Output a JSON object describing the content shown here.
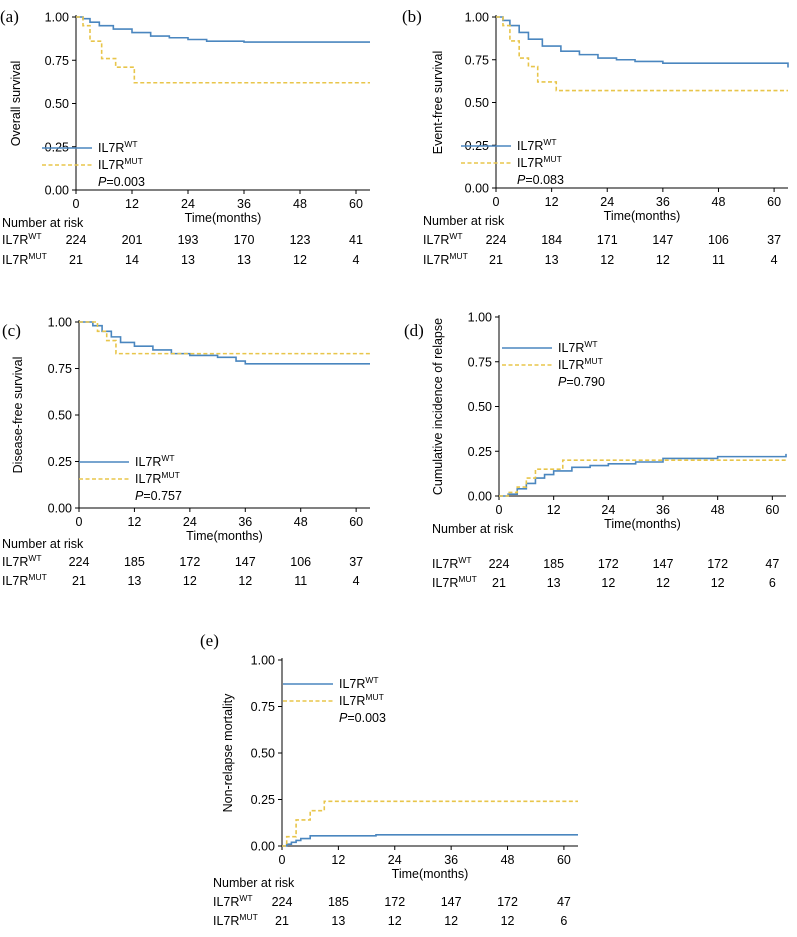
{
  "colors": {
    "wt": "#4a86bf",
    "mut": "#e8c54a",
    "axis": "#000000"
  },
  "chart_data": [
    {
      "type": "line",
      "panel": "(a)",
      "ylabel": "Overall survival",
      "xlabel": "Time(months)",
      "xticks": [
        0,
        12,
        24,
        36,
        48,
        60
      ],
      "yticks": [
        "0.00",
        "0.25",
        "0.50",
        "0.75",
        "1.00"
      ],
      "xlim": [
        0,
        63
      ],
      "ylim": [
        0,
        1
      ],
      "legend": {
        "wt_base": "IL7R",
        "wt_sup": "WT",
        "mut_base": "IL7R",
        "mut_sup": "MUT",
        "p_label": "P",
        "p_value": "=0.003"
      },
      "series": [
        {
          "name": "IL7R WT",
          "style": "solid",
          "x": [
            0,
            1.5,
            3,
            5,
            8,
            12,
            16,
            20,
            24,
            28,
            36,
            48,
            63
          ],
          "y": [
            1,
            0.99,
            0.97,
            0.95,
            0.93,
            0.91,
            0.89,
            0.88,
            0.87,
            0.86,
            0.855,
            0.855,
            0.855
          ]
        },
        {
          "name": "IL7R MUT",
          "style": "dashed",
          "x": [
            0,
            1.5,
            3,
            5.5,
            8.5,
            12.5,
            63
          ],
          "y": [
            1,
            0.95,
            0.86,
            0.76,
            0.71,
            0.62,
            0.62
          ]
        }
      ],
      "risk_table": {
        "title": "Number at risk",
        "wt_label": "IL7R",
        "wt_sup": "WT",
        "mut_label": "IL7R",
        "mut_sup": "MUT",
        "wt": [
          "224",
          "201",
          "193",
          "170",
          "123",
          "41"
        ],
        "mut": [
          "21",
          "14",
          "13",
          "13",
          "12",
          "4"
        ]
      }
    },
    {
      "type": "line",
      "panel": "(b)",
      "ylabel": "Event-free survival",
      "xlabel": "Time(months)",
      "xticks": [
        0,
        12,
        24,
        36,
        48,
        60
      ],
      "yticks": [
        "0.00",
        "0.25",
        "0.50",
        "0.75",
        "1.00"
      ],
      "xlim": [
        0,
        63
      ],
      "ylim": [
        0,
        1
      ],
      "legend": {
        "wt_base": "IL7R",
        "wt_sup": "WT",
        "mut_base": "IL7R",
        "mut_sup": "MUT",
        "p_label": "P",
        "p_value": "=0.083"
      },
      "series": [
        {
          "name": "IL7R WT",
          "style": "solid",
          "x": [
            0,
            1.5,
            3,
            5,
            7,
            10,
            14,
            18,
            22,
            26,
            30,
            36,
            48,
            62,
            63
          ],
          "y": [
            1,
            0.98,
            0.95,
            0.91,
            0.87,
            0.83,
            0.8,
            0.78,
            0.76,
            0.75,
            0.74,
            0.73,
            0.73,
            0.73,
            0.705
          ]
        },
        {
          "name": "IL7R MUT",
          "style": "dashed",
          "x": [
            0,
            1.5,
            3,
            5,
            7,
            9,
            13,
            63
          ],
          "y": [
            1,
            0.95,
            0.86,
            0.76,
            0.71,
            0.62,
            0.57,
            0.57
          ]
        }
      ],
      "risk_table": {
        "title": "Number at risk",
        "wt_label": "IL7R",
        "wt_sup": "WT",
        "mut_label": "IL7R",
        "mut_sup": "MUT",
        "wt": [
          "224",
          "184",
          "171",
          "147",
          "106",
          "37"
        ],
        "mut": [
          "21",
          "13",
          "12",
          "12",
          "11",
          "4"
        ]
      }
    },
    {
      "type": "line",
      "panel": "(c)",
      "ylabel": "Disease-free survival",
      "xlabel": "Time(months)",
      "xticks": [
        0,
        12,
        24,
        36,
        48,
        60
      ],
      "yticks": [
        "0.00",
        "0.25",
        "0.50",
        "0.75",
        "1.00"
      ],
      "xlim": [
        0,
        63
      ],
      "ylim": [
        0,
        1
      ],
      "legend": {
        "wt_base": "IL7R",
        "wt_sup": "WT",
        "mut_base": "IL7R",
        "mut_sup": "MUT",
        "p_label": "P",
        "p_value": "=0.757"
      },
      "series": [
        {
          "name": "IL7R WT",
          "style": "solid",
          "x": [
            0,
            3,
            5,
            7,
            9,
            12,
            16,
            20,
            24,
            30,
            34,
            36,
            63
          ],
          "y": [
            1,
            0.98,
            0.95,
            0.92,
            0.89,
            0.87,
            0.85,
            0.83,
            0.82,
            0.81,
            0.79,
            0.775,
            0.775
          ]
        },
        {
          "name": "IL7R MUT",
          "style": "dashed",
          "x": [
            0,
            4,
            6,
            8,
            63
          ],
          "y": [
            1,
            0.95,
            0.9,
            0.83,
            0.83
          ]
        }
      ],
      "risk_table": {
        "title": "Number at risk",
        "wt_label": "IL7R",
        "wt_sup": "WT",
        "mut_label": "IL7R",
        "mut_sup": "MUT",
        "wt": [
          "224",
          "185",
          "172",
          "147",
          "106",
          "37"
        ],
        "mut": [
          "21",
          "13",
          "12",
          "12",
          "11",
          "4"
        ]
      }
    },
    {
      "type": "line",
      "panel": "(d)",
      "ylabel": "Cumulative incidence of relapse",
      "xlabel": "Time(months)",
      "xticks": [
        0,
        12,
        24,
        36,
        48,
        60
      ],
      "yticks": [
        "0.00",
        "0.25",
        "0.50",
        "0.75",
        "1.00"
      ],
      "xlim": [
        0,
        63
      ],
      "ylim": [
        0,
        1
      ],
      "legend": {
        "wt_base": "IL7R",
        "wt_sup": "WT",
        "mut_base": "IL7R",
        "mut_sup": "MUT",
        "p_label": "P",
        "p_value": "=0.790"
      },
      "series": [
        {
          "name": "IL7R WT",
          "style": "solid",
          "x": [
            0,
            2,
            4,
            6,
            8,
            10,
            12,
            16,
            20,
            24,
            30,
            36,
            48,
            62,
            63
          ],
          "y": [
            0,
            0.01,
            0.04,
            0.07,
            0.1,
            0.12,
            0.14,
            0.16,
            0.17,
            0.18,
            0.19,
            0.21,
            0.22,
            0.22,
            0.235
          ]
        },
        {
          "name": "IL7R MUT",
          "style": "dashed",
          "x": [
            0,
            2,
            4,
            6,
            8,
            14,
            34,
            63
          ],
          "y": [
            0,
            0.02,
            0.05,
            0.1,
            0.15,
            0.2,
            0.2,
            0.2
          ]
        }
      ],
      "risk_table": {
        "title": "Number at risk",
        "wt_label": "IL7R",
        "wt_sup": "WT",
        "mut_label": "IL7R",
        "mut_sup": "MUT",
        "wt": [
          "224",
          "185",
          "172",
          "147",
          "172",
          "47"
        ],
        "mut": [
          "21",
          "13",
          "12",
          "12",
          "12",
          "6"
        ]
      }
    },
    {
      "type": "line",
      "panel": "(e)",
      "ylabel": "Non-relapse mortality",
      "xlabel": "Time(months)",
      "xticks": [
        0,
        12,
        24,
        36,
        48,
        60
      ],
      "yticks": [
        "0.00",
        "0.25",
        "0.50",
        "0.75",
        "1.00"
      ],
      "xlim": [
        0,
        63
      ],
      "ylim": [
        0,
        1
      ],
      "legend": {
        "wt_base": "IL7R",
        "wt_sup": "WT",
        "mut_base": "IL7R",
        "mut_sup": "MUT",
        "p_label": "P",
        "p_value": "=0.003"
      },
      "series": [
        {
          "name": "IL7R WT",
          "style": "solid",
          "x": [
            0,
            1,
            2,
            3,
            4,
            6,
            20,
            63
          ],
          "y": [
            0,
            0.01,
            0.02,
            0.03,
            0.04,
            0.055,
            0.06,
            0.06
          ]
        },
        {
          "name": "IL7R MUT",
          "style": "dashed",
          "x": [
            0,
            1,
            3,
            6,
            9,
            63
          ],
          "y": [
            0,
            0.05,
            0.14,
            0.19,
            0.24,
            0.24
          ]
        }
      ],
      "risk_table": {
        "title": "Number at risk",
        "wt_label": "IL7R",
        "wt_sup": "WT",
        "mut_label": "IL7R",
        "mut_sup": "MUT",
        "wt": [
          "224",
          "185",
          "172",
          "147",
          "172",
          "47"
        ],
        "mut": [
          "21",
          "13",
          "12",
          "12",
          "12",
          "6"
        ]
      }
    }
  ]
}
